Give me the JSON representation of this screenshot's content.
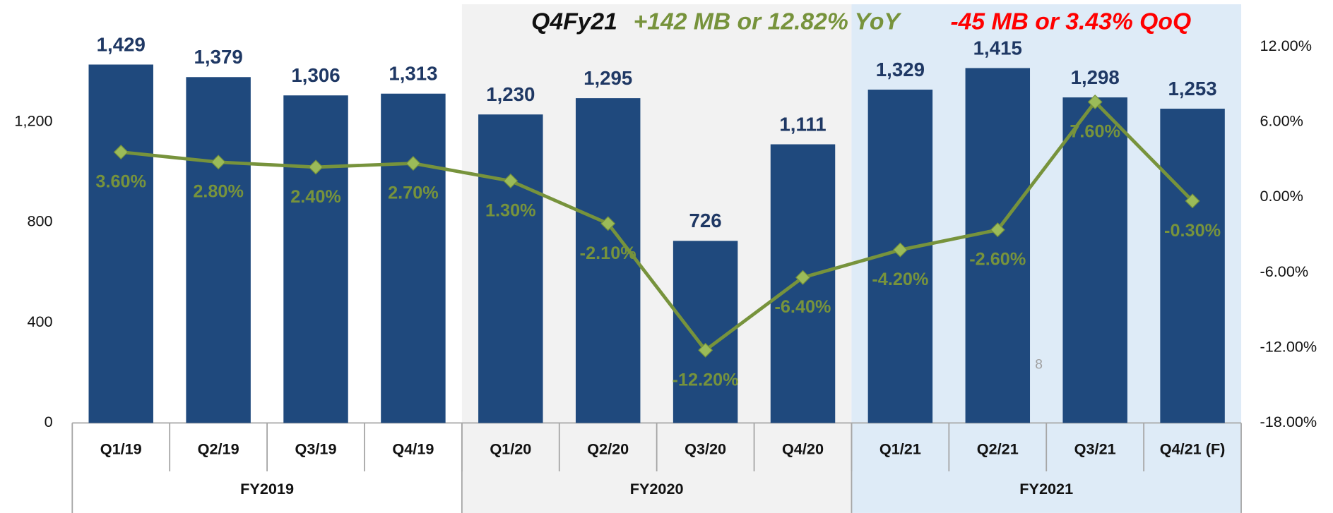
{
  "chart_data": {
    "type": "bar",
    "categories": [
      "Q1/19",
      "Q2/19",
      "Q3/19",
      "Q4/19",
      "Q1/20",
      "Q2/20",
      "Q3/20",
      "Q4/20",
      "Q1/21",
      "Q2/21",
      "Q3/21",
      "Q4/21 (F)"
    ],
    "groups": [
      {
        "label": "FY2019",
        "count": 4,
        "background": "#ffffff"
      },
      {
        "label": "FY2020",
        "count": 4,
        "background": "#f2f2f2"
      },
      {
        "label": "FY2021",
        "count": 4,
        "background": "#deebf7"
      }
    ],
    "series": [
      {
        "type": "bar",
        "color": "#1f497d",
        "values": [
          1429,
          1379,
          1306,
          1313,
          1230,
          1295,
          726,
          1111,
          1329,
          1415,
          1298,
          1253
        ],
        "value_labels": [
          "1,429",
          "1,379",
          "1,306",
          "1,313",
          "1,230",
          "1,295",
          "726",
          "1,111",
          "1,329",
          "1,415",
          "1,298",
          "1,253"
        ]
      },
      {
        "type": "line",
        "axis": "y2",
        "color": "#77933c",
        "marker_color": "#9bbb59",
        "values": [
          3.6,
          2.8,
          2.4,
          2.7,
          1.3,
          -2.1,
          -12.2,
          -6.4,
          -4.2,
          -2.6,
          7.6,
          -0.3
        ],
        "value_labels": [
          "3.60%",
          "2.80%",
          "2.40%",
          "2.70%",
          "1.30%",
          "-2.10%",
          "-12.20%",
          "-6.40%",
          "-4.20%",
          "-2.60%",
          "7.60%",
          "-0.30%"
        ]
      }
    ],
    "ylim": [
      0,
      1500
    ],
    "yticks": [
      0,
      400,
      800,
      {
        "value": 1200,
        "label": "1,200"
      }
    ],
    "y2lim": [
      -18,
      12
    ],
    "y2ticks": [
      {
        "value": -18,
        "label": "-18.00%"
      },
      {
        "value": -12,
        "label": "-12.00%"
      },
      {
        "value": -6,
        "label": "-6.00%"
      },
      {
        "value": 0,
        "label": "0.00%"
      },
      {
        "value": 6,
        "label": "6.00%"
      },
      {
        "value": 12,
        "label": "12.00%"
      }
    ],
    "annotations": [
      {
        "text": "Q4Fy21",
        "color": "#111111"
      },
      {
        "text": "+142 MB or 12.82% YoY",
        "color": "#77933c"
      },
      {
        "text": "-45 MB or 3.43% QoQ",
        "color": "#ff0000"
      }
    ],
    "page_number": "8"
  }
}
